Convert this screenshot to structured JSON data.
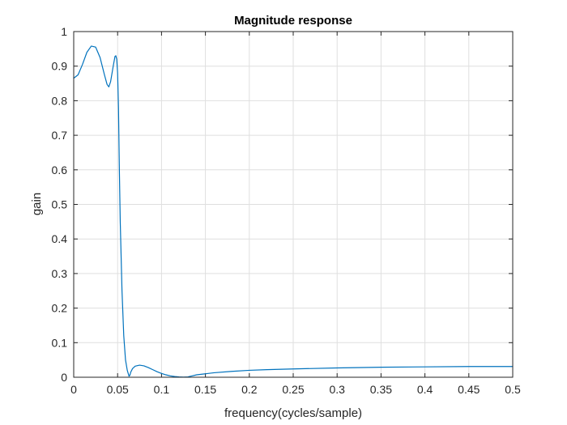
{
  "chart_data": {
    "type": "line",
    "title": "Magnitude response",
    "xlabel": "frequency(cycles/sample)",
    "ylabel": "gain",
    "xlim": [
      0,
      0.5
    ],
    "ylim": [
      0,
      1
    ],
    "xticks": [
      0,
      0.05,
      0.1,
      0.15,
      0.2,
      0.25,
      0.3,
      0.35,
      0.4,
      0.45,
      0.5
    ],
    "xtick_labels": [
      "0",
      "0.05",
      "0.1",
      "0.15",
      "0.2",
      "0.25",
      "0.3",
      "0.35",
      "0.4",
      "0.45",
      "0.5"
    ],
    "yticks": [
      0,
      0.1,
      0.2,
      0.3,
      0.4,
      0.5,
      0.6,
      0.7,
      0.8,
      0.9,
      1
    ],
    "ytick_labels": [
      "0",
      "0.1",
      "0.2",
      "0.3",
      "0.4",
      "0.5",
      "0.6",
      "0.7",
      "0.8",
      "0.9",
      "1"
    ],
    "grid": true,
    "line_color": "#0072bd",
    "series": [
      {
        "x": [
          0,
          0.005,
          0.01,
          0.015,
          0.02,
          0.025,
          0.03,
          0.035,
          0.038,
          0.04,
          0.042,
          0.045,
          0.047,
          0.048,
          0.049,
          0.05,
          0.051,
          0.052,
          0.053,
          0.055,
          0.057,
          0.059,
          0.061,
          0.063,
          0.064,
          0.065,
          0.067,
          0.07,
          0.075,
          0.08,
          0.085,
          0.09,
          0.095,
          0.1,
          0.105,
          0.11,
          0.115,
          0.12,
          0.125,
          0.13,
          0.135,
          0.14,
          0.15,
          0.16,
          0.18,
          0.2,
          0.22,
          0.25,
          0.3,
          0.35,
          0.4,
          0.45,
          0.5
        ],
        "y": [
          0.865,
          0.875,
          0.905,
          0.94,
          0.958,
          0.955,
          0.925,
          0.875,
          0.847,
          0.84,
          0.855,
          0.9,
          0.928,
          0.93,
          0.92,
          0.88,
          0.78,
          0.6,
          0.45,
          0.25,
          0.12,
          0.05,
          0.02,
          0.003,
          0.006,
          0.015,
          0.025,
          0.032,
          0.035,
          0.033,
          0.028,
          0.022,
          0.016,
          0.011,
          0.007,
          0.004,
          0.002,
          0.001,
          0.0005,
          0.001,
          0.004,
          0.007,
          0.01,
          0.013,
          0.017,
          0.02,
          0.022,
          0.024,
          0.027,
          0.029,
          0.03,
          0.031,
          0.031
        ]
      }
    ]
  }
}
